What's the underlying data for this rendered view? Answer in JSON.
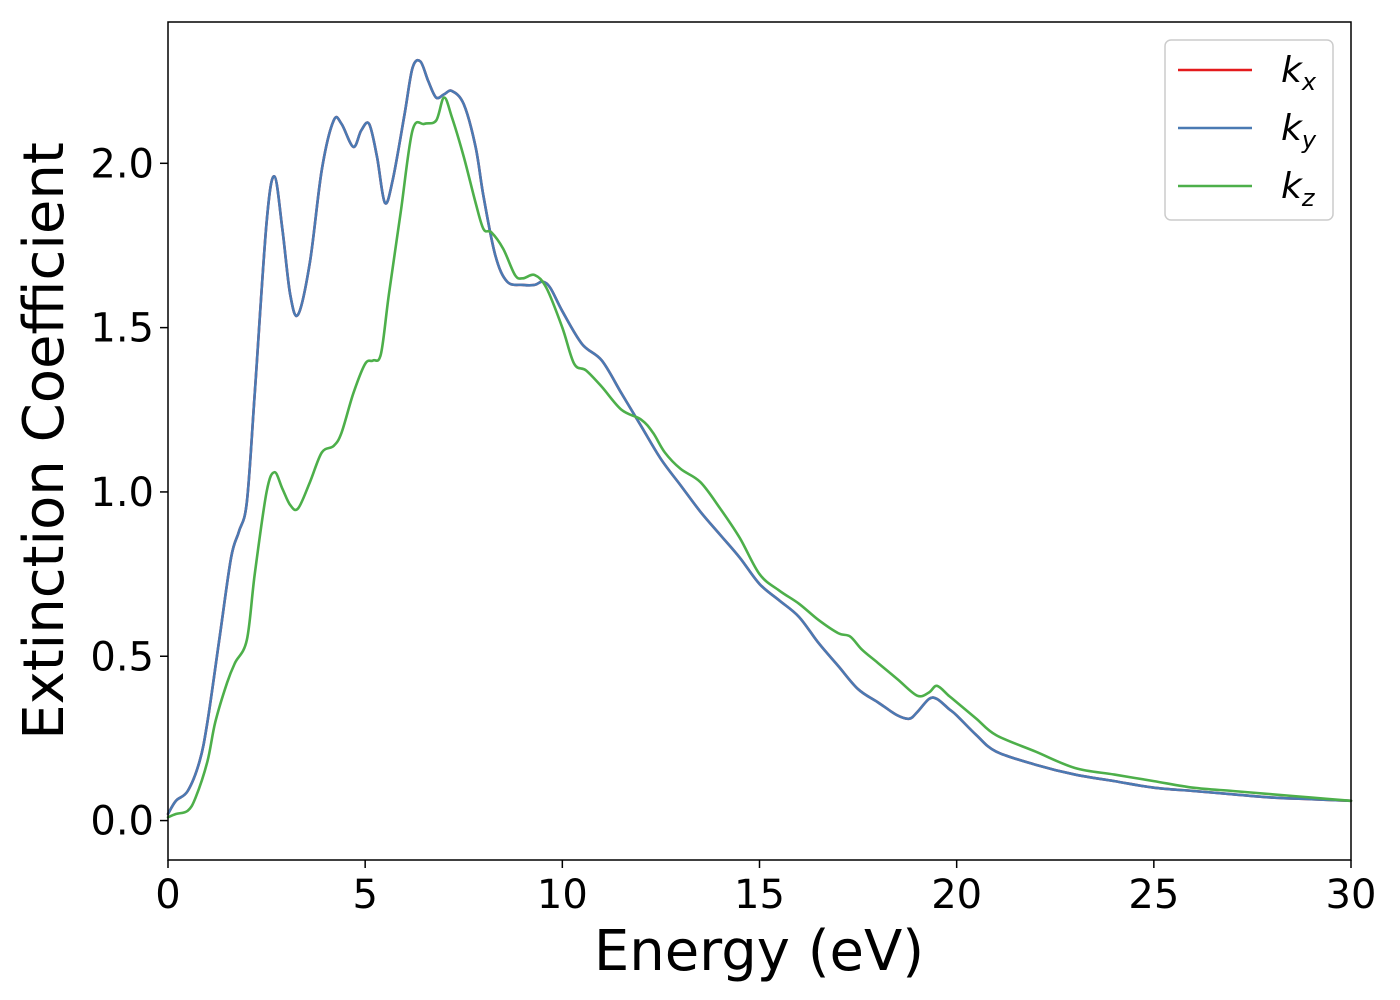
{
  "chart_data": {
    "type": "line",
    "xlabel": "Energy (eV)",
    "ylabel": "Extinction Coefficient",
    "xlim": [
      0,
      30
    ],
    "ylim": [
      -0.12,
      2.43
    ],
    "xticks": [
      "0",
      "5",
      "10",
      "15",
      "20",
      "25",
      "30"
    ],
    "yticks": [
      "0.0",
      "0.5",
      "1.0",
      "1.5",
      "2.0"
    ],
    "legend_position": "top-right",
    "grid": false,
    "series": [
      {
        "name": "k",
        "subscript": "x",
        "color": "#e41a1c",
        "x": [
          0,
          0.2,
          0.5,
          0.8,
          1.0,
          1.3,
          1.6,
          1.8,
          2.0,
          2.2,
          2.5,
          2.7,
          2.9,
          3.1,
          3.3,
          3.6,
          3.9,
          4.2,
          4.4,
          4.7,
          4.9,
          5.1,
          5.3,
          5.5,
          5.7,
          6.0,
          6.2,
          6.4,
          6.6,
          6.8,
          7.0,
          7.2,
          7.5,
          7.8,
          8.0,
          8.3,
          8.6,
          9.0,
          9.3,
          9.5,
          9.7,
          10.0,
          10.5,
          11.0,
          11.5,
          12.0,
          12.5,
          13.0,
          13.5,
          14.0,
          14.5,
          15.0,
          15.5,
          16.0,
          16.5,
          17.0,
          17.5,
          18.0,
          18.5,
          18.8,
          19.0,
          19.3,
          19.5,
          19.8,
          20.0,
          20.5,
          21.0,
          22.0,
          23.0,
          24.0,
          25.0,
          26.0,
          27.0,
          28.0,
          29.0,
          30.0
        ],
        "y": [
          0.02,
          0.06,
          0.09,
          0.18,
          0.3,
          0.55,
          0.8,
          0.88,
          0.97,
          1.3,
          1.82,
          1.96,
          1.8,
          1.6,
          1.54,
          1.7,
          1.98,
          2.13,
          2.12,
          2.05,
          2.1,
          2.12,
          2.02,
          1.88,
          1.95,
          2.15,
          2.29,
          2.31,
          2.25,
          2.2,
          2.21,
          2.22,
          2.18,
          2.05,
          1.9,
          1.72,
          1.64,
          1.63,
          1.63,
          1.64,
          1.62,
          1.55,
          1.45,
          1.4,
          1.3,
          1.2,
          1.1,
          1.02,
          0.94,
          0.87,
          0.8,
          0.72,
          0.67,
          0.62,
          0.54,
          0.47,
          0.4,
          0.36,
          0.32,
          0.31,
          0.33,
          0.37,
          0.37,
          0.34,
          0.32,
          0.26,
          0.21,
          0.17,
          0.14,
          0.12,
          0.1,
          0.09,
          0.08,
          0.07,
          0.065,
          0.06
        ]
      },
      {
        "name": "k",
        "subscript": "y",
        "color": "#4a7ab3",
        "x": [
          0,
          0.2,
          0.5,
          0.8,
          1.0,
          1.3,
          1.6,
          1.8,
          2.0,
          2.2,
          2.5,
          2.7,
          2.9,
          3.1,
          3.3,
          3.6,
          3.9,
          4.2,
          4.4,
          4.7,
          4.9,
          5.1,
          5.3,
          5.5,
          5.7,
          6.0,
          6.2,
          6.4,
          6.6,
          6.8,
          7.0,
          7.2,
          7.5,
          7.8,
          8.0,
          8.3,
          8.6,
          9.0,
          9.3,
          9.5,
          9.7,
          10.0,
          10.5,
          11.0,
          11.5,
          12.0,
          12.5,
          13.0,
          13.5,
          14.0,
          14.5,
          15.0,
          15.5,
          16.0,
          16.5,
          17.0,
          17.5,
          18.0,
          18.5,
          18.8,
          19.0,
          19.3,
          19.5,
          19.8,
          20.0,
          20.5,
          21.0,
          22.0,
          23.0,
          24.0,
          25.0,
          26.0,
          27.0,
          28.0,
          29.0,
          30.0
        ],
        "y": [
          0.02,
          0.06,
          0.09,
          0.18,
          0.3,
          0.55,
          0.8,
          0.88,
          0.97,
          1.3,
          1.82,
          1.96,
          1.8,
          1.6,
          1.54,
          1.7,
          1.98,
          2.13,
          2.12,
          2.05,
          2.1,
          2.12,
          2.02,
          1.88,
          1.95,
          2.15,
          2.29,
          2.31,
          2.25,
          2.2,
          2.21,
          2.22,
          2.18,
          2.05,
          1.9,
          1.72,
          1.64,
          1.63,
          1.63,
          1.64,
          1.62,
          1.55,
          1.45,
          1.4,
          1.3,
          1.2,
          1.1,
          1.02,
          0.94,
          0.87,
          0.8,
          0.72,
          0.67,
          0.62,
          0.54,
          0.47,
          0.4,
          0.36,
          0.32,
          0.31,
          0.33,
          0.37,
          0.37,
          0.34,
          0.32,
          0.26,
          0.21,
          0.17,
          0.14,
          0.12,
          0.1,
          0.09,
          0.08,
          0.07,
          0.065,
          0.06
        ]
      },
      {
        "name": "k",
        "subscript": "z",
        "color": "#4daf4a",
        "x": [
          0,
          0.2,
          0.5,
          0.7,
          1.0,
          1.2,
          1.5,
          1.7,
          2.0,
          2.2,
          2.5,
          2.7,
          2.9,
          3.1,
          3.3,
          3.6,
          3.9,
          4.2,
          4.4,
          4.7,
          5.0,
          5.2,
          5.4,
          5.6,
          5.9,
          6.2,
          6.5,
          6.8,
          7.0,
          7.2,
          7.5,
          7.8,
          8.0,
          8.2,
          8.5,
          8.8,
          9.0,
          9.3,
          9.6,
          10.0,
          10.3,
          10.6,
          11.0,
          11.5,
          12.0,
          12.3,
          12.6,
          13.0,
          13.5,
          14.0,
          14.5,
          15.0,
          15.5,
          16.0,
          16.5,
          17.0,
          17.3,
          17.6,
          18.0,
          18.5,
          19.0,
          19.3,
          19.5,
          19.8,
          20.0,
          20.5,
          21.0,
          22.0,
          23.0,
          24.0,
          25.0,
          26.0,
          27.0,
          28.0,
          29.0,
          30.0
        ],
        "y": [
          0.01,
          0.02,
          0.03,
          0.07,
          0.18,
          0.3,
          0.42,
          0.48,
          0.55,
          0.75,
          1.0,
          1.06,
          1.01,
          0.96,
          0.95,
          1.03,
          1.12,
          1.14,
          1.18,
          1.3,
          1.39,
          1.4,
          1.42,
          1.6,
          1.85,
          2.1,
          2.12,
          2.13,
          2.2,
          2.14,
          2.02,
          1.88,
          1.8,
          1.79,
          1.74,
          1.66,
          1.65,
          1.66,
          1.62,
          1.5,
          1.39,
          1.37,
          1.32,
          1.25,
          1.22,
          1.18,
          1.12,
          1.07,
          1.03,
          0.95,
          0.86,
          0.75,
          0.7,
          0.66,
          0.61,
          0.57,
          0.56,
          0.52,
          0.48,
          0.43,
          0.38,
          0.39,
          0.41,
          0.38,
          0.36,
          0.31,
          0.26,
          0.21,
          0.16,
          0.14,
          0.12,
          0.1,
          0.09,
          0.08,
          0.07,
          0.06
        ]
      }
    ]
  }
}
